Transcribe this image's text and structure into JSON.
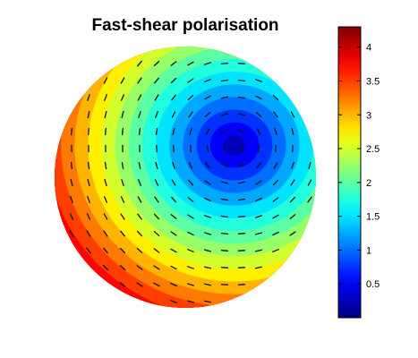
{
  "chart_data": {
    "type": "heatmap",
    "title": "Fast-shear polarisation",
    "xlabel": "",
    "ylabel": "",
    "projection": "disk",
    "colormap": "jet",
    "colorbar": {
      "range": [
        0,
        4.3
      ],
      "ticks": [
        0.5,
        1,
        1.5,
        2,
        2.5,
        3,
        3.5,
        4
      ],
      "tick_labels": [
        "0.5",
        "1",
        "1.5",
        "2",
        "2.5",
        "3",
        "3.5",
        "4"
      ]
    },
    "field": {
      "description": "radially increasing value around an off-centre minimum",
      "minimum_value": 0.05,
      "maximum_value": 4.3,
      "contour_levels": [
        0.25,
        0.5,
        0.75,
        1.0,
        1.25,
        1.5,
        1.75,
        2.0,
        2.25,
        2.5,
        2.75,
        3.0,
        3.25,
        3.5,
        3.75,
        4.0,
        4.3
      ]
    },
    "overlay": {
      "type": "polarisation-ticks",
      "orientation": "tangential"
    }
  },
  "colors": {
    "background": "#ffffff",
    "axis": "#000000",
    "tick": "#111111"
  }
}
